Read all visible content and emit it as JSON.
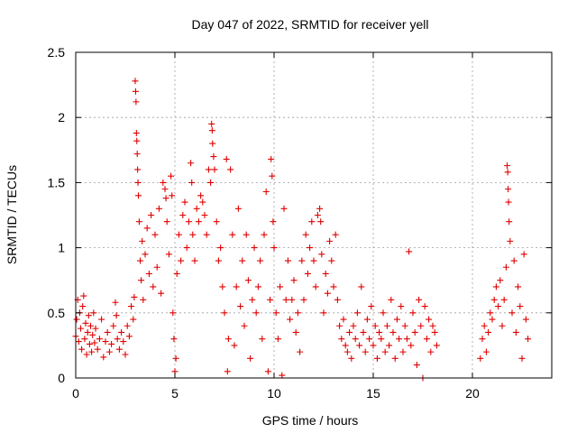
{
  "chart_data": {
    "type": "scatter",
    "title": "Day 047 of 2022, SRMTID for receiver yell",
    "xlabel": "GPS time / hours",
    "ylabel": "SRMTID / TECUs",
    "xlim": [
      0,
      24
    ],
    "ylim": [
      0,
      2.5
    ],
    "xticks": [
      0,
      5,
      10,
      15,
      20
    ],
    "xtick_labels": [
      "0",
      "5",
      "10",
      "15",
      "20"
    ],
    "yticks": [
      0,
      0.5,
      1,
      1.5,
      2,
      2.5
    ],
    "ytick_labels": [
      "0",
      "0.5",
      "1",
      "1.5",
      "2",
      "2.5"
    ],
    "grid": true,
    "marker": "+",
    "color": "#e00000",
    "series": [
      {
        "name": "SRMTID",
        "points": [
          [
            0.0,
            0.32
          ],
          [
            0.05,
            0.45
          ],
          [
            0.1,
            0.6
          ],
          [
            0.15,
            0.28
          ],
          [
            0.2,
            0.5
          ],
          [
            0.25,
            0.38
          ],
          [
            0.3,
            0.22
          ],
          [
            0.35,
            0.55
          ],
          [
            0.4,
            0.63
          ],
          [
            0.45,
            0.3
          ],
          [
            0.5,
            0.42
          ],
          [
            0.55,
            0.18
          ],
          [
            0.6,
            0.35
          ],
          [
            0.65,
            0.48
          ],
          [
            0.7,
            0.26
          ],
          [
            0.75,
            0.4
          ],
          [
            0.8,
            0.2
          ],
          [
            0.85,
            0.33
          ],
          [
            0.9,
            0.5
          ],
          [
            0.95,
            0.27
          ],
          [
            1.0,
            0.38
          ],
          [
            1.1,
            0.22
          ],
          [
            1.2,
            0.3
          ],
          [
            1.3,
            0.45
          ],
          [
            1.4,
            0.16
          ],
          [
            1.5,
            0.28
          ],
          [
            1.6,
            0.35
          ],
          [
            1.7,
            0.2
          ],
          [
            1.8,
            0.26
          ],
          [
            1.9,
            0.4
          ],
          [
            2.0,
            0.58
          ],
          [
            2.05,
            0.48
          ],
          [
            2.1,
            0.3
          ],
          [
            2.2,
            0.22
          ],
          [
            2.3,
            0.35
          ],
          [
            2.4,
            0.28
          ],
          [
            2.5,
            0.18
          ],
          [
            2.6,
            0.4
          ],
          [
            2.7,
            0.32
          ],
          [
            2.8,
            0.55
          ],
          [
            2.9,
            0.45
          ],
          [
            2.95,
            0.62
          ],
          [
            3.0,
            2.28
          ],
          [
            3.02,
            2.2
          ],
          [
            3.04,
            2.12
          ],
          [
            3.06,
            1.88
          ],
          [
            3.08,
            1.82
          ],
          [
            3.1,
            1.72
          ],
          [
            3.12,
            1.6
          ],
          [
            3.14,
            1.5
          ],
          [
            3.16,
            1.4
          ],
          [
            3.2,
            1.2
          ],
          [
            3.25,
            0.9
          ],
          [
            3.3,
            0.75
          ],
          [
            3.35,
            1.05
          ],
          [
            3.4,
            0.6
          ],
          [
            3.5,
            0.95
          ],
          [
            3.6,
            1.15
          ],
          [
            3.7,
            0.8
          ],
          [
            3.8,
            1.25
          ],
          [
            3.9,
            0.7
          ],
          [
            4.0,
            1.1
          ],
          [
            4.1,
            0.85
          ],
          [
            4.2,
            1.3
          ],
          [
            4.3,
            0.65
          ],
          [
            4.4,
            1.5
          ],
          [
            4.5,
            1.45
          ],
          [
            4.55,
            1.38
          ],
          [
            4.6,
            1.2
          ],
          [
            4.7,
            0.95
          ],
          [
            4.8,
            1.55
          ],
          [
            4.85,
            1.4
          ],
          [
            4.9,
            0.5
          ],
          [
            4.95,
            0.3
          ],
          [
            5.0,
            0.05
          ],
          [
            5.05,
            0.15
          ],
          [
            5.1,
            0.8
          ],
          [
            5.2,
            1.1
          ],
          [
            5.3,
            0.9
          ],
          [
            5.4,
            1.25
          ],
          [
            5.5,
            1.35
          ],
          [
            5.6,
            1.0
          ],
          [
            5.7,
            1.2
          ],
          [
            5.8,
            1.65
          ],
          [
            5.85,
            1.5
          ],
          [
            5.9,
            1.1
          ],
          [
            6.0,
            0.9
          ],
          [
            6.1,
            1.3
          ],
          [
            6.2,
            1.2
          ],
          [
            6.3,
            1.4
          ],
          [
            6.4,
            1.35
          ],
          [
            6.5,
            1.25
          ],
          [
            6.6,
            1.1
          ],
          [
            6.7,
            1.6
          ],
          [
            6.8,
            1.5
          ],
          [
            6.85,
            1.95
          ],
          [
            6.88,
            1.9
          ],
          [
            6.9,
            1.8
          ],
          [
            6.95,
            1.7
          ],
          [
            7.0,
            1.6
          ],
          [
            7.1,
            1.2
          ],
          [
            7.2,
            0.9
          ],
          [
            7.3,
            1.0
          ],
          [
            7.4,
            0.7
          ],
          [
            7.5,
            0.5
          ],
          [
            7.6,
            1.68
          ],
          [
            7.65,
            0.05
          ],
          [
            7.7,
            0.3
          ],
          [
            7.8,
            1.6
          ],
          [
            7.9,
            1.1
          ],
          [
            8.0,
            0.25
          ],
          [
            8.1,
            0.7
          ],
          [
            8.2,
            1.3
          ],
          [
            8.3,
            0.55
          ],
          [
            8.4,
            0.9
          ],
          [
            8.5,
            0.4
          ],
          [
            8.6,
            1.1
          ],
          [
            8.7,
            0.75
          ],
          [
            8.8,
            0.15
          ],
          [
            8.9,
            0.6
          ],
          [
            9.0,
            1.0
          ],
          [
            9.1,
            0.5
          ],
          [
            9.2,
            0.7
          ],
          [
            9.3,
            0.9
          ],
          [
            9.4,
            0.3
          ],
          [
            9.5,
            1.1
          ],
          [
            9.6,
            1.43
          ],
          [
            9.7,
            0.05
          ],
          [
            9.8,
            0.6
          ],
          [
            9.85,
            1.68
          ],
          [
            9.9,
            1.55
          ],
          [
            9.95,
            1.2
          ],
          [
            10.0,
            1.0
          ],
          [
            10.1,
            0.5
          ],
          [
            10.2,
            0.3
          ],
          [
            10.3,
            0.7
          ],
          [
            10.4,
            0.02
          ],
          [
            10.5,
            1.3
          ],
          [
            10.6,
            0.6
          ],
          [
            10.7,
            0.9
          ],
          [
            10.8,
            0.45
          ],
          [
            10.9,
            0.6
          ],
          [
            11.0,
            0.75
          ],
          [
            11.1,
            0.35
          ],
          [
            11.2,
            0.5
          ],
          [
            11.3,
            0.2
          ],
          [
            11.4,
            0.9
          ],
          [
            11.5,
            0.6
          ],
          [
            11.6,
            1.1
          ],
          [
            11.7,
            0.8
          ],
          [
            11.8,
            1.0
          ],
          [
            11.9,
            1.2
          ],
          [
            12.0,
            0.9
          ],
          [
            12.1,
            0.7
          ],
          [
            12.2,
            1.25
          ],
          [
            12.3,
            1.3
          ],
          [
            12.35,
            1.2
          ],
          [
            12.4,
            0.95
          ],
          [
            12.5,
            0.5
          ],
          [
            12.6,
            0.8
          ],
          [
            12.7,
            0.65
          ],
          [
            12.8,
            1.05
          ],
          [
            12.9,
            0.9
          ],
          [
            13.0,
            0.7
          ],
          [
            13.1,
            1.1
          ],
          [
            13.2,
            0.6
          ],
          [
            13.3,
            0.4
          ],
          [
            13.4,
            0.3
          ],
          [
            13.5,
            0.45
          ],
          [
            13.6,
            0.25
          ],
          [
            13.7,
            0.2
          ],
          [
            13.8,
            0.35
          ],
          [
            13.9,
            0.15
          ],
          [
            14.0,
            0.4
          ],
          [
            14.1,
            0.3
          ],
          [
            14.2,
            0.5
          ],
          [
            14.3,
            0.25
          ],
          [
            14.4,
            0.7
          ],
          [
            14.5,
            0.35
          ],
          [
            14.6,
            0.2
          ],
          [
            14.7,
            0.45
          ],
          [
            14.8,
            0.3
          ],
          [
            14.9,
            0.55
          ],
          [
            15.0,
            0.25
          ],
          [
            15.1,
            0.4
          ],
          [
            15.2,
            0.15
          ],
          [
            15.3,
            0.35
          ],
          [
            15.4,
            0.3
          ],
          [
            15.5,
            0.5
          ],
          [
            15.6,
            0.2
          ],
          [
            15.7,
            0.4
          ],
          [
            15.8,
            0.25
          ],
          [
            15.9,
            0.6
          ],
          [
            16.0,
            0.35
          ],
          [
            16.1,
            0.15
          ],
          [
            16.2,
            0.45
          ],
          [
            16.3,
            0.3
          ],
          [
            16.4,
            0.55
          ],
          [
            16.5,
            0.2
          ],
          [
            16.6,
            0.4
          ],
          [
            16.7,
            0.3
          ],
          [
            16.8,
            0.97
          ],
          [
            16.9,
            0.25
          ],
          [
            17.0,
            0.5
          ],
          [
            17.1,
            0.35
          ],
          [
            17.2,
            0.1
          ],
          [
            17.3,
            0.6
          ],
          [
            17.4,
            0.4
          ],
          [
            17.5,
            0.0
          ],
          [
            17.6,
            0.55
          ],
          [
            17.7,
            0.3
          ],
          [
            17.8,
            0.45
          ],
          [
            17.9,
            0.2
          ],
          [
            18.0,
            0.4
          ],
          [
            18.1,
            0.35
          ],
          [
            18.2,
            0.25
          ],
          [
            20.4,
            0.15
          ],
          [
            20.5,
            0.3
          ],
          [
            20.6,
            0.4
          ],
          [
            20.7,
            0.2
          ],
          [
            20.8,
            0.35
          ],
          [
            20.9,
            0.5
          ],
          [
            21.0,
            0.45
          ],
          [
            21.1,
            0.6
          ],
          [
            21.2,
            0.7
          ],
          [
            21.3,
            0.55
          ],
          [
            21.4,
            0.75
          ],
          [
            21.5,
            0.4
          ],
          [
            21.6,
            0.6
          ],
          [
            21.7,
            0.85
          ],
          [
            21.75,
            1.63
          ],
          [
            21.78,
            1.58
          ],
          [
            21.8,
            1.45
          ],
          [
            21.82,
            1.35
          ],
          [
            21.85,
            1.2
          ],
          [
            21.9,
            1.05
          ],
          [
            22.0,
            0.5
          ],
          [
            22.1,
            0.9
          ],
          [
            22.2,
            0.35
          ],
          [
            22.3,
            0.7
          ],
          [
            22.4,
            0.55
          ],
          [
            22.5,
            0.15
          ],
          [
            22.6,
            0.95
          ],
          [
            22.7,
            0.45
          ],
          [
            22.8,
            0.3
          ]
        ]
      }
    ]
  }
}
